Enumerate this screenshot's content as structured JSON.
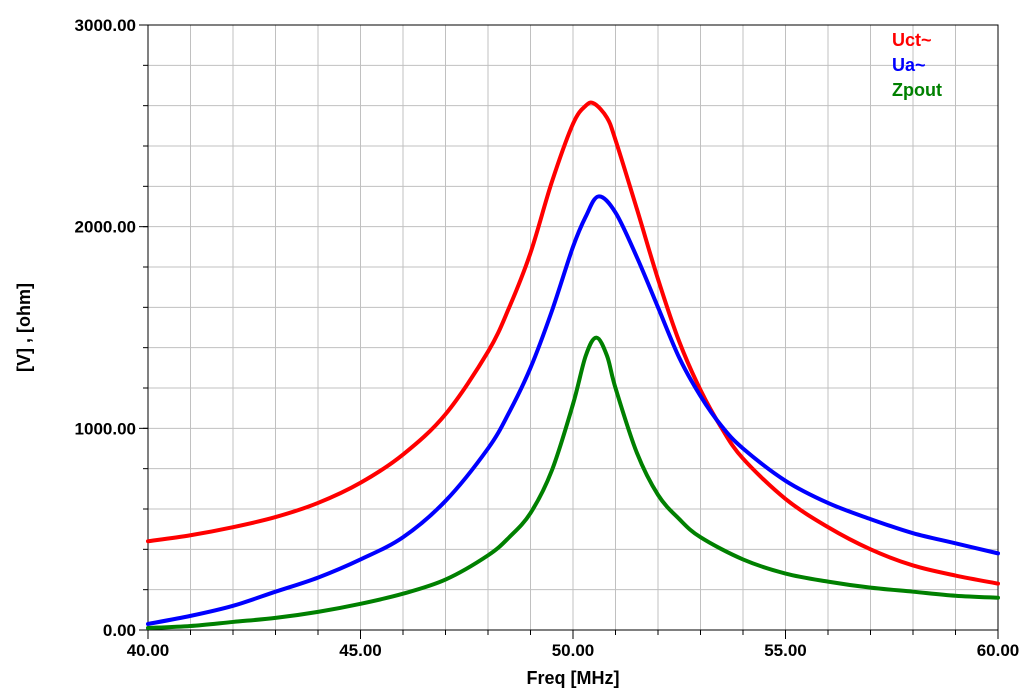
{
  "chart_data": {
    "type": "line",
    "xlabel": "Freq [MHz]",
    "ylabel": "[V] , [ohm]",
    "xlim": [
      40,
      60
    ],
    "ylim": [
      0,
      3000
    ],
    "x_ticks": [
      40,
      45,
      50,
      55,
      60
    ],
    "x_tick_labels": [
      "40.00",
      "45.00",
      "50.00",
      "55.00",
      "60.00"
    ],
    "x_minor_step": 1,
    "y_ticks": [
      0,
      1000,
      2000,
      3000
    ],
    "y_tick_labels": [
      "0.00",
      "1000.00",
      "2000.00",
      "3000.00"
    ],
    "y_minor_step": 200,
    "grid": true,
    "legend_position": "top-right",
    "series": [
      {
        "name": "Uct~",
        "color": "#ff0000",
        "x": [
          40,
          41,
          42,
          43,
          44,
          45,
          46,
          47,
          48,
          48.5,
          49,
          49.5,
          50,
          50.3,
          50.5,
          50.8,
          51,
          51.5,
          52,
          52.5,
          53,
          53.5,
          54,
          55,
          56,
          57,
          58,
          59,
          60
        ],
        "y": [
          440,
          470,
          510,
          560,
          630,
          730,
          870,
          1070,
          1380,
          1600,
          1870,
          2220,
          2510,
          2600,
          2610,
          2540,
          2430,
          2090,
          1740,
          1430,
          1190,
          1000,
          850,
          650,
          510,
          400,
          320,
          270,
          230
        ]
      },
      {
        "name": "Ua~",
        "color": "#0000ff",
        "x": [
          40,
          41,
          42,
          43,
          44,
          45,
          46,
          47,
          48,
          48.5,
          49,
          49.5,
          50,
          50.3,
          50.6,
          51,
          51.5,
          52,
          52.5,
          53,
          53.5,
          54,
          55,
          56,
          57,
          58,
          59,
          60
        ],
        "y": [
          30,
          70,
          120,
          190,
          260,
          350,
          460,
          640,
          900,
          1080,
          1300,
          1580,
          1900,
          2050,
          2150,
          2070,
          1850,
          1600,
          1350,
          1160,
          1010,
          900,
          740,
          630,
          550,
          480,
          430,
          380
        ]
      },
      {
        "name": "Zpout",
        "color": "#008000",
        "x": [
          40,
          41,
          42,
          43,
          44,
          45,
          46,
          47,
          48,
          48.5,
          49,
          49.5,
          50,
          50.3,
          50.55,
          50.8,
          51,
          51.5,
          52,
          52.5,
          53,
          54,
          55,
          56,
          57,
          58,
          59,
          60
        ],
        "y": [
          10,
          20,
          40,
          60,
          90,
          130,
          180,
          250,
          370,
          460,
          580,
          790,
          1120,
          1360,
          1450,
          1360,
          1200,
          880,
          670,
          550,
          460,
          350,
          280,
          240,
          210,
          190,
          170,
          160
        ]
      }
    ]
  }
}
